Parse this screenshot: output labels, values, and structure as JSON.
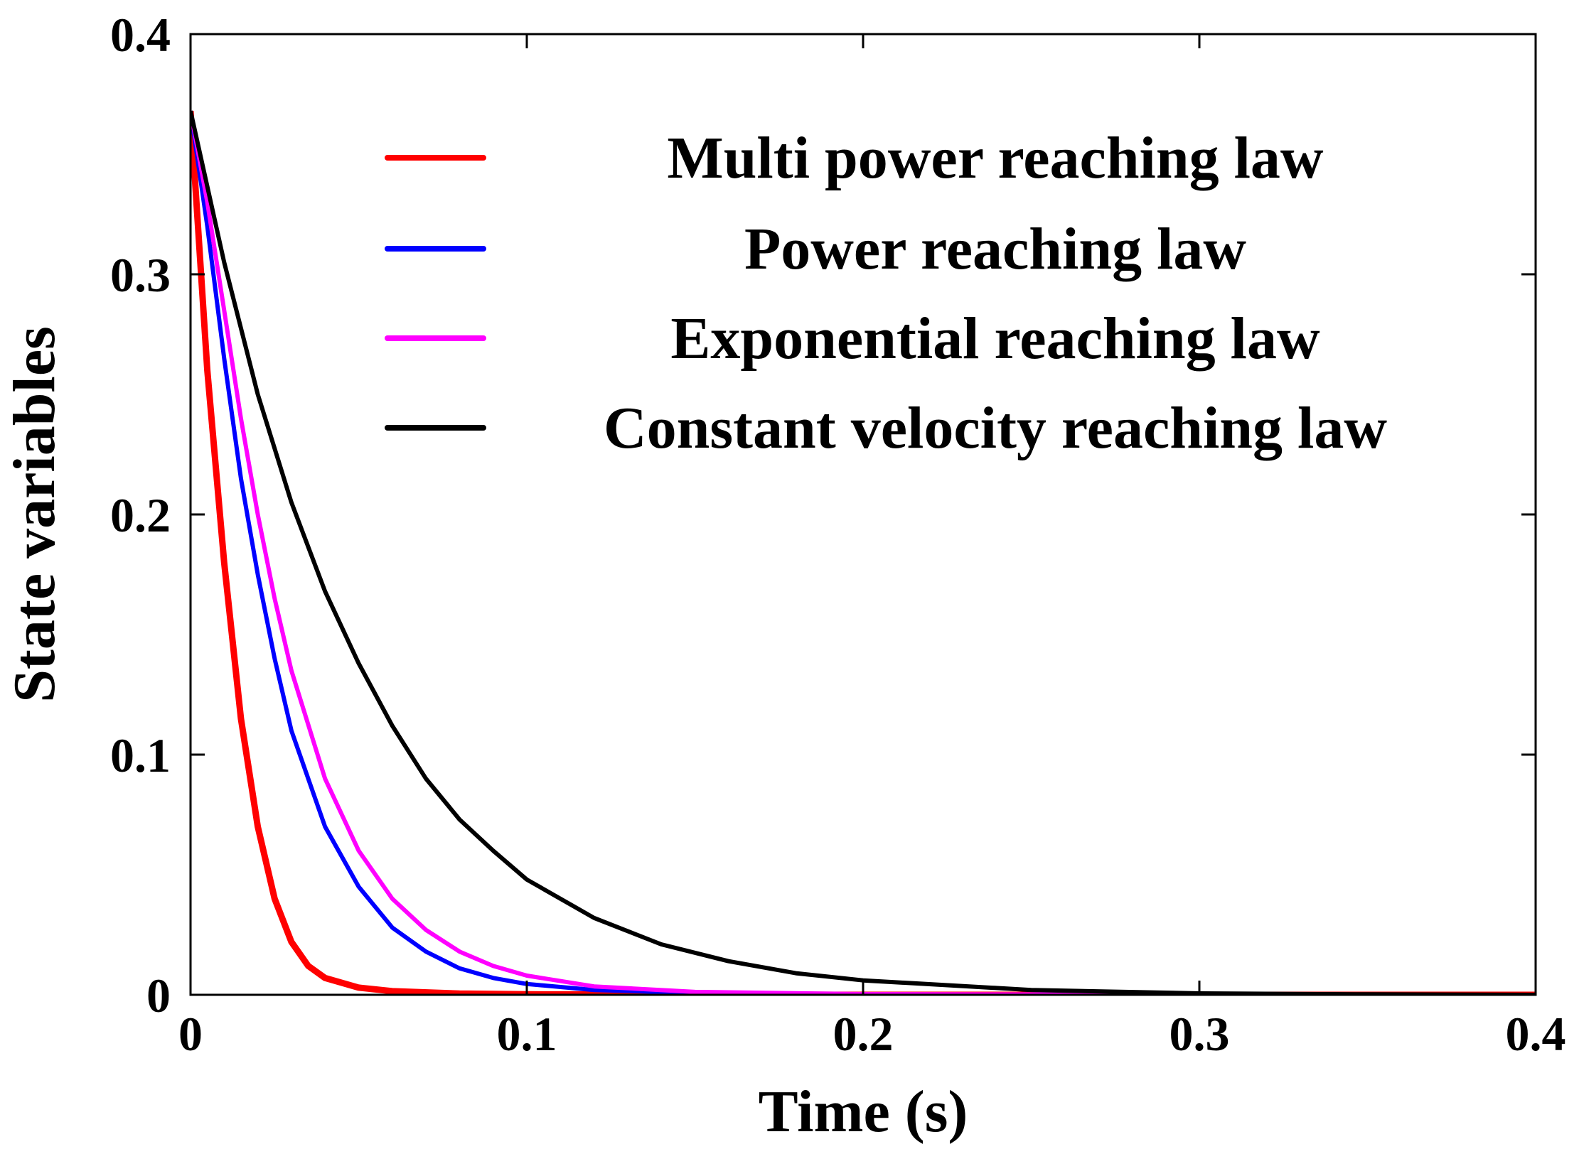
{
  "chart_data": {
    "type": "line",
    "title": "",
    "xlabel": "Time (s)",
    "ylabel": "State variables",
    "xlim": [
      0,
      0.4
    ],
    "ylim": [
      0,
      0.4
    ],
    "xticks": [
      0,
      0.1,
      0.2,
      0.3,
      0.4
    ],
    "yticks": [
      0,
      0.1,
      0.2,
      0.3,
      0.4
    ],
    "xtick_labels": [
      "0",
      "0.1",
      "0.2",
      "0.3",
      "0.4"
    ],
    "ytick_labels": [
      "0",
      "0.1",
      "0.2",
      "0.3",
      "0.4"
    ],
    "grid": false,
    "legend_position": "top-right",
    "series": [
      {
        "name": "Multi power reaching law",
        "color": "#ff0000",
        "x": [
          0,
          0.005,
          0.01,
          0.015,
          0.02,
          0.025,
          0.03,
          0.035,
          0.04,
          0.05,
          0.06,
          0.08,
          0.1,
          0.15,
          0.2,
          0.3,
          0.4
        ],
        "y": [
          0.368,
          0.26,
          0.18,
          0.115,
          0.07,
          0.04,
          0.022,
          0.012,
          0.007,
          0.003,
          0.0015,
          0.0005,
          0.0002,
          0.0001,
          0,
          0,
          0
        ]
      },
      {
        "name": "Power reaching law",
        "color": "#0000ff",
        "x": [
          0,
          0.005,
          0.01,
          0.015,
          0.02,
          0.025,
          0.03,
          0.04,
          0.05,
          0.06,
          0.07,
          0.08,
          0.09,
          0.1,
          0.12,
          0.15,
          0.2,
          0.3,
          0.4
        ],
        "y": [
          0.368,
          0.32,
          0.265,
          0.215,
          0.175,
          0.14,
          0.11,
          0.07,
          0.045,
          0.028,
          0.018,
          0.011,
          0.007,
          0.0045,
          0.002,
          0.0008,
          0.0002,
          0,
          0
        ]
      },
      {
        "name": "Exponential reaching law",
        "color": "#ff00ff",
        "x": [
          0,
          0.005,
          0.01,
          0.015,
          0.02,
          0.025,
          0.03,
          0.04,
          0.05,
          0.06,
          0.07,
          0.08,
          0.09,
          0.1,
          0.12,
          0.15,
          0.2,
          0.3,
          0.4
        ],
        "y": [
          0.368,
          0.33,
          0.285,
          0.24,
          0.2,
          0.165,
          0.135,
          0.09,
          0.06,
          0.04,
          0.027,
          0.018,
          0.012,
          0.008,
          0.0035,
          0.0012,
          0.0003,
          0,
          0
        ]
      },
      {
        "name": "Constant velocity reaching law",
        "color": "#000000",
        "x": [
          0,
          0.01,
          0.02,
          0.03,
          0.04,
          0.05,
          0.06,
          0.07,
          0.08,
          0.09,
          0.1,
          0.12,
          0.14,
          0.16,
          0.18,
          0.2,
          0.25,
          0.3,
          0.35,
          0.4
        ],
        "y": [
          0.368,
          0.305,
          0.25,
          0.205,
          0.168,
          0.138,
          0.112,
          0.09,
          0.073,
          0.06,
          0.048,
          0.032,
          0.021,
          0.014,
          0.009,
          0.006,
          0.002,
          0.0006,
          0.0002,
          0
        ]
      }
    ]
  }
}
